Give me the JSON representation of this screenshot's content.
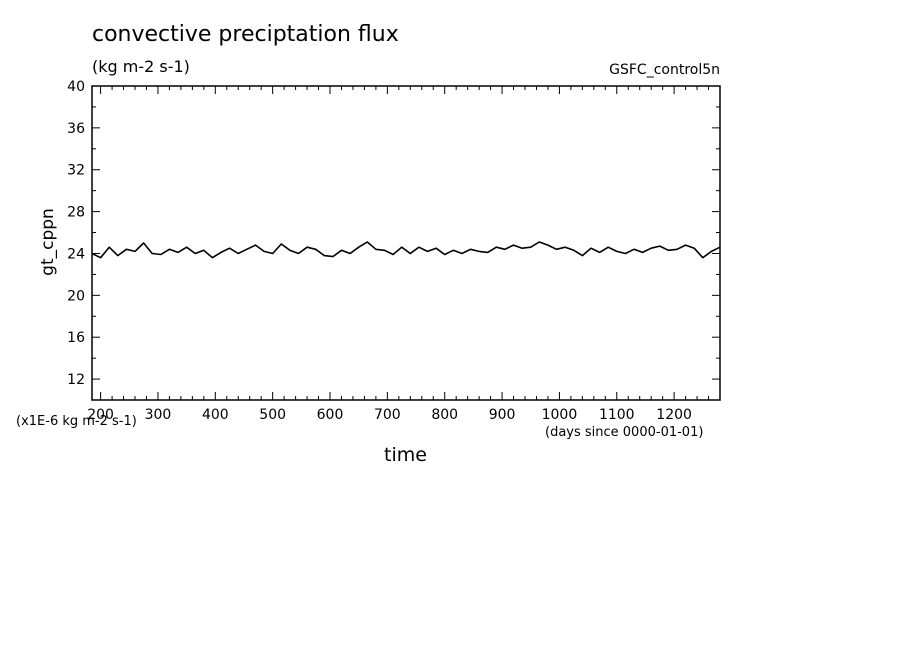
{
  "chart_data": {
    "type": "line",
    "title": "convective preciptation flux",
    "units": "(kg m-2 s-1)",
    "run_label": "GSFC_control5n",
    "xlabel": "time",
    "x_units": "(days since 0000-01-01)",
    "ylabel": "gt_cppn",
    "y_scale_note": "(x1E-6 kg m-2 s-1)",
    "xlim": [
      185,
      1280
    ],
    "ylim": [
      10,
      40
    ],
    "x_ticks": [
      200,
      300,
      400,
      500,
      600,
      700,
      800,
      900,
      1000,
      1100,
      1200
    ],
    "y_ticks": [
      12,
      16,
      20,
      24,
      28,
      32,
      36,
      40
    ],
    "grid": false,
    "series": [
      {
        "color": "#000000",
        "x": [
          185,
          200,
          215,
          230,
          245,
          260,
          275,
          290,
          305,
          320,
          335,
          350,
          365,
          380,
          395,
          410,
          425,
          440,
          455,
          470,
          485,
          500,
          515,
          530,
          545,
          560,
          575,
          590,
          605,
          620,
          635,
          650,
          665,
          680,
          695,
          710,
          725,
          740,
          755,
          770,
          785,
          800,
          815,
          830,
          845,
          860,
          875,
          890,
          905,
          920,
          935,
          950,
          965,
          980,
          995,
          1010,
          1025,
          1040,
          1055,
          1070,
          1085,
          1100,
          1115,
          1130,
          1145,
          1160,
          1175,
          1190,
          1205,
          1220,
          1235,
          1250,
          1265,
          1280
        ],
        "values": [
          24.0,
          23.6,
          24.6,
          23.8,
          24.4,
          24.2,
          25.0,
          24.0,
          23.9,
          24.4,
          24.1,
          24.6,
          24.0,
          24.3,
          23.6,
          24.1,
          24.5,
          24.0,
          24.4,
          24.8,
          24.2,
          24.0,
          24.9,
          24.3,
          24.0,
          24.6,
          24.4,
          23.8,
          23.7,
          24.3,
          24.0,
          24.6,
          25.1,
          24.4,
          24.3,
          23.9,
          24.6,
          24.0,
          24.6,
          24.2,
          24.5,
          23.9,
          24.3,
          24.0,
          24.4,
          24.2,
          24.1,
          24.6,
          24.4,
          24.8,
          24.5,
          24.6,
          25.1,
          24.8,
          24.4,
          24.6,
          24.3,
          23.8,
          24.5,
          24.1,
          24.6,
          24.2,
          24.0,
          24.4,
          24.1,
          24.5,
          24.7,
          24.3,
          24.4,
          24.8,
          24.5,
          23.6,
          24.2,
          24.6
        ]
      }
    ]
  }
}
